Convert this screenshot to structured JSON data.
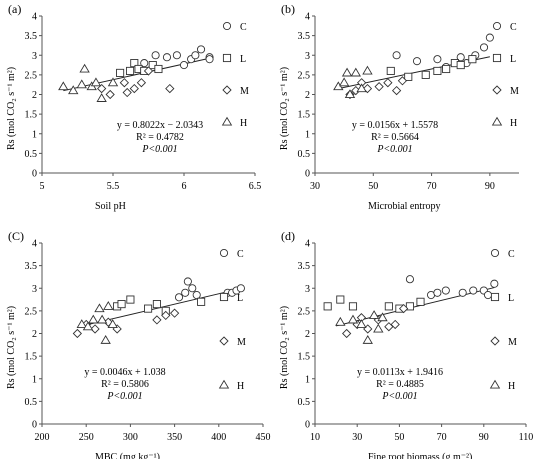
{
  "chart_data": [
    {
      "type": "scatter",
      "panel_label": "(a)",
      "xlabel": "Soil pH",
      "ylabel": "Rs (mol CO₂ s⁻¹ m²)",
      "xlim": [
        5,
        6.5
      ],
      "ylim": [
        0,
        4
      ],
      "xticks": [
        "5",
        "5.5",
        "6",
        "6.5"
      ],
      "yticks": [
        "0",
        "0.5",
        "1",
        "1.5",
        "2",
        "2.5",
        "3",
        "3.5",
        "4"
      ],
      "legend": [
        "C",
        "L",
        "M",
        "H"
      ],
      "equation": "y = 0.8022x − 2.0343",
      "r2": "R² = 0.4782",
      "p": "P<0.001",
      "fit": {
        "slope": 0.8022,
        "intercept": -2.0343,
        "x_range": [
          5.15,
          6.2
        ]
      },
      "series": [
        {
          "name": "C",
          "marker": "circle",
          "x": [
            5.72,
            5.8,
            5.88,
            5.95,
            6.0,
            6.05,
            6.08,
            6.12,
            6.18,
            6.18
          ],
          "y": [
            2.8,
            3.0,
            2.95,
            3.0,
            2.75,
            2.9,
            3.0,
            3.15,
            2.95,
            2.9
          ]
        },
        {
          "name": "L",
          "marker": "square",
          "x": [
            5.55,
            5.62,
            5.65,
            5.68,
            5.72,
            5.78,
            5.82
          ],
          "y": [
            2.55,
            2.6,
            2.8,
            2.65,
            2.6,
            2.75,
            2.65
          ]
        },
        {
          "name": "M",
          "marker": "diamond",
          "x": [
            5.42,
            5.48,
            5.58,
            5.6,
            5.65,
            5.7,
            5.75,
            5.9
          ],
          "y": [
            2.15,
            2.0,
            2.3,
            2.05,
            2.15,
            2.3,
            2.6,
            2.15
          ]
        },
        {
          "name": "H",
          "marker": "triangle",
          "x": [
            5.15,
            5.22,
            5.28,
            5.3,
            5.35,
            5.38,
            5.42,
            5.5
          ],
          "y": [
            2.2,
            2.1,
            2.25,
            2.65,
            2.2,
            2.3,
            1.9,
            2.3
          ]
        }
      ]
    },
    {
      "type": "scatter",
      "panel_label": "(b)",
      "xlabel": "Microbial entropy",
      "ylabel": "Rs (mol CO₂ s⁻¹ m²)",
      "xlim": [
        30,
        100
      ],
      "ylim": [
        0,
        4
      ],
      "xticks": [
        "30",
        "50",
        "70",
        "90"
      ],
      "yticks": [
        "0",
        "0.5",
        "1",
        "1.5",
        "2",
        "2.5",
        "3",
        "3.5",
        "4"
      ],
      "legend": [
        "C",
        "L",
        "M",
        "H"
      ],
      "equation": "y = 0.0156x + 1.5578",
      "r2": "R² = 0.5664",
      "p": "P<0.001",
      "fit": {
        "slope": 0.0156,
        "intercept": 1.5578,
        "x_range": [
          38,
          90
        ]
      },
      "series": [
        {
          "name": "C",
          "marker": "circle",
          "x": [
            58,
            65,
            72,
            75,
            80,
            82,
            85,
            88,
            90
          ],
          "y": [
            3.0,
            2.85,
            2.9,
            2.7,
            2.95,
            2.8,
            3.0,
            3.2,
            3.45
          ]
        },
        {
          "name": "L",
          "marker": "square",
          "x": [
            56,
            62,
            68,
            72,
            75,
            78,
            80,
            84
          ],
          "y": [
            2.6,
            2.45,
            2.5,
            2.6,
            2.65,
            2.8,
            2.75,
            2.9
          ]
        },
        {
          "name": "M",
          "marker": "diamond",
          "x": [
            42,
            44,
            46,
            48,
            52,
            55,
            58,
            60
          ],
          "y": [
            2.0,
            2.1,
            2.3,
            2.15,
            2.2,
            2.3,
            2.1,
            2.35
          ]
        },
        {
          "name": "H",
          "marker": "triangle",
          "x": [
            38,
            40,
            41,
            42,
            44,
            46,
            48
          ],
          "y": [
            2.2,
            2.3,
            2.55,
            2.0,
            2.55,
            2.15,
            2.6
          ]
        }
      ]
    },
    {
      "type": "scatter",
      "panel_label": "(C)",
      "xlabel": "MBC (mg kg⁻¹)",
      "ylabel": "Rs (mol CO₂ s⁻¹ m²)",
      "xlim": [
        200,
        450
      ],
      "ylim": [
        0,
        4
      ],
      "xticks": [
        "200",
        "250",
        "300",
        "350",
        "400",
        "450"
      ],
      "yticks": [
        "0",
        "0.5",
        "1",
        "1.5",
        "2",
        "2.5",
        "3",
        "3.5",
        "4"
      ],
      "legend": [
        "C",
        "L",
        "M",
        "H"
      ],
      "equation": "y = 0.0046x + 1.038",
      "r2": "R² = 0.5806",
      "p": "P<0.001",
      "fit": {
        "slope": 0.0046,
        "intercept": 1.038,
        "x_range": [
          240,
          425
        ]
      },
      "series": [
        {
          "name": "C",
          "marker": "circle",
          "x": [
            355,
            362,
            365,
            370,
            375,
            410,
            415,
            420,
            425
          ],
          "y": [
            2.8,
            2.9,
            3.15,
            3.0,
            2.85,
            2.9,
            2.9,
            2.95,
            3.0
          ]
        },
        {
          "name": "L",
          "marker": "square",
          "x": [
            285,
            290,
            300,
            320,
            330,
            340,
            380
          ],
          "y": [
            2.6,
            2.65,
            2.75,
            2.55,
            2.65,
            2.5,
            2.7
          ]
        },
        {
          "name": "M",
          "marker": "diamond",
          "x": [
            240,
            250,
            260,
            275,
            285,
            330,
            340,
            350
          ],
          "y": [
            2.0,
            2.2,
            2.1,
            2.25,
            2.1,
            2.3,
            2.4,
            2.45
          ]
        },
        {
          "name": "H",
          "marker": "triangle",
          "x": [
            245,
            252,
            258,
            265,
            268,
            272,
            275,
            280
          ],
          "y": [
            2.2,
            2.15,
            2.3,
            2.55,
            2.3,
            1.85,
            2.6,
            2.2
          ]
        }
      ]
    },
    {
      "type": "scatter",
      "panel_label": "(d)",
      "xlabel": "Fine root biomass (g m⁻²)",
      "ylabel": "Rs (mol CO₂ s⁻¹ m²)",
      "xlim": [
        10,
        110
      ],
      "ylim": [
        0,
        4
      ],
      "xticks": [
        "10",
        "30",
        "50",
        "70",
        "90",
        "110"
      ],
      "yticks": [
        "0",
        "0.5",
        "1",
        "1.5",
        "2",
        "2.5",
        "3",
        "3.5",
        "4"
      ],
      "legend": [
        "C",
        "L",
        "M",
        "H"
      ],
      "equation": "y = 0.0113x + 1.9416",
      "r2": "R² = 0.4885",
      "p": "P<0.001",
      "fit": {
        "slope": 0.0113,
        "intercept": 1.9416,
        "x_range": [
          20,
          95
        ]
      },
      "series": [
        {
          "name": "C",
          "marker": "circle",
          "x": [
            55,
            65,
            68,
            72,
            80,
            85,
            90,
            92,
            95
          ],
          "y": [
            3.2,
            2.85,
            2.9,
            2.95,
            2.9,
            2.95,
            2.95,
            2.85,
            3.1
          ]
        },
        {
          "name": "L",
          "marker": "square",
          "x": [
            16,
            22,
            28,
            45,
            50,
            55,
            60
          ],
          "y": [
            2.6,
            2.75,
            2.6,
            2.6,
            2.55,
            2.6,
            2.7
          ]
        },
        {
          "name": "M",
          "marker": "diamond",
          "x": [
            25,
            30,
            32,
            35,
            40,
            45,
            48,
            52
          ],
          "y": [
            2.0,
            2.2,
            2.35,
            2.1,
            2.3,
            2.15,
            2.2,
            2.55
          ]
        },
        {
          "name": "H",
          "marker": "triangle",
          "x": [
            22,
            28,
            32,
            35,
            38,
            40,
            42
          ],
          "y": [
            2.25,
            2.3,
            2.2,
            1.85,
            2.4,
            2.1,
            2.35
          ]
        }
      ]
    }
  ]
}
